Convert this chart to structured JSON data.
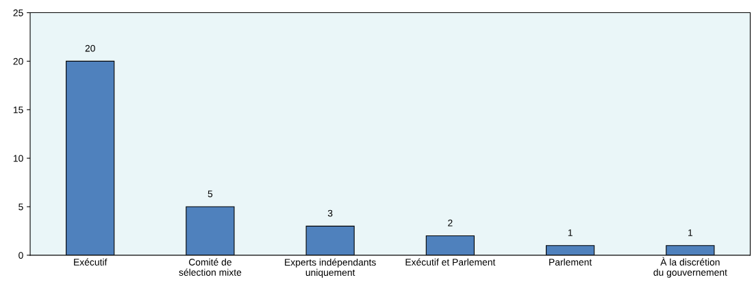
{
  "chart_data": {
    "type": "bar",
    "categories": [
      "Exécutif",
      "Comité de sélection mixte",
      "Experts indépendants uniquement",
      "Exécutif et Parlement",
      "Parlement",
      "À la discrétion du gouvernement"
    ],
    "values": [
      20,
      5,
      3,
      2,
      1,
      1
    ],
    "color": "#4f81bd",
    "ylim": [
      0,
      25
    ],
    "yticks": [
      0,
      5,
      10,
      15,
      20,
      25
    ],
    "grid": false,
    "data_labels": true
  }
}
